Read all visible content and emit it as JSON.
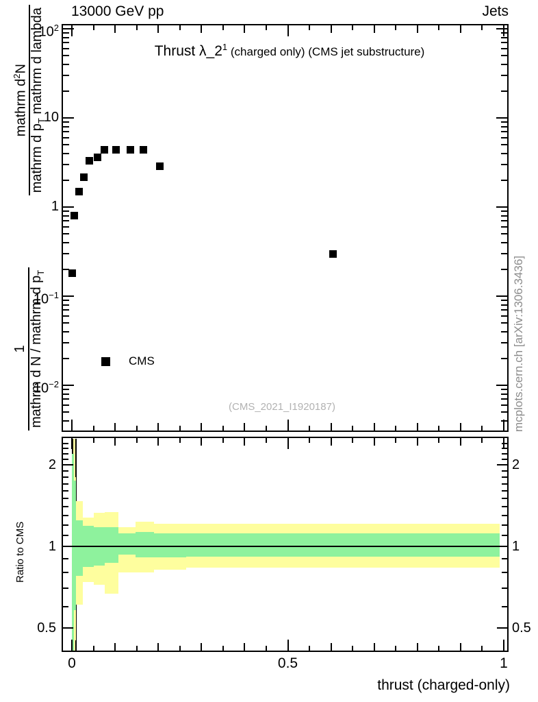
{
  "header": {
    "beam_energy": "13000 GeV pp",
    "analysis_group": "Jets"
  },
  "title": {
    "main": "Thrust λ_2",
    "sup": "1",
    "rest": " (charged only) (CMS jet substructure)"
  },
  "legend": {
    "label": "CMS"
  },
  "watermark": "(CMS_2021_I1920187)",
  "side_note": "mcplots.cern.ch [arXiv:1306.3436]",
  "xlabel": "thrust (charged-only)",
  "ratio_ylabel": "Ratio to CMS",
  "colors": {
    "band_yellow": "#FEFE9E",
    "band_green": "#8EF29D",
    "marker": "#000000",
    "gray_text": "#8c8c8c",
    "watermark_gray": "#b2b2b2"
  },
  "ylabel_frac": {
    "f1": {
      "num": [
        {
          "t": "1"
        }
      ],
      "den": [
        {
          "t": "mathrm d N / mathrm d p"
        },
        {
          "t": "T",
          "s": "sub"
        }
      ]
    },
    "f2": {
      "num": [
        {
          "t": "mathrm d"
        },
        {
          "t": "2",
          "s": "sup"
        },
        {
          "t": "N"
        }
      ],
      "den": [
        {
          "t": "mathrm d p"
        },
        {
          "t": "T",
          "s": "sub"
        },
        {
          "t": " mathrm d lambda"
        }
      ]
    }
  },
  "chart_data": {
    "type": "scatter",
    "title": "Thrust λ_2^1 (charged only) (CMS jet substructure)",
    "xlabel": "thrust (charged-only)",
    "ylabel": "1/(mathrm dN/mathrm dp_T) · mathrm d²N/(mathrm dp_T mathrm d lambda)",
    "x_range": [
      -0.024,
      1.011
    ],
    "y_range_log": [
      0.003,
      113
    ],
    "grid": false,
    "x_ticks": {
      "major": [
        0,
        0.5,
        1
      ],
      "labels": [
        "0",
        "0.5",
        "1"
      ],
      "medium_step": 0.1,
      "minor_step": 0.05
    },
    "y_ticks_labeled": [
      {
        "v": 100,
        "base": "10",
        "exp": "2"
      },
      {
        "v": 10,
        "base": "10",
        "exp": ""
      },
      {
        "v": 1,
        "base": "1",
        "exp": ""
      },
      {
        "v": 0.1,
        "base": "10",
        "exp": "−1"
      },
      {
        "v": 0.01,
        "base": "10",
        "exp": "−2"
      }
    ],
    "series": [
      {
        "name": "CMS",
        "marker": "filled-square",
        "color": "#000000",
        "points": [
          [
            0.001,
            0.18
          ],
          [
            0.006,
            0.8
          ],
          [
            0.016,
            1.5
          ],
          [
            0.027,
            2.15
          ],
          [
            0.041,
            3.3
          ],
          [
            0.059,
            3.6
          ],
          [
            0.076,
            4.35
          ],
          [
            0.103,
            4.35
          ],
          [
            0.135,
            4.4
          ],
          [
            0.166,
            4.4
          ],
          [
            0.203,
            2.85
          ],
          [
            0.605,
            0.295
          ]
        ]
      }
    ],
    "ratio_panel": {
      "ylabel": "Ratio to CMS",
      "y_range_log": [
        0.4,
        2.55
      ],
      "reference_line": 1.0,
      "y_ticks": {
        "major": [
          2,
          1,
          0.5
        ],
        "labels": [
          "2",
          "1",
          "0.5"
        ],
        "minor": [
          0.6,
          0.7,
          0.8,
          0.9,
          1.1,
          1.2,
          1.3,
          1.4,
          1.5,
          1.6,
          1.7,
          1.8,
          1.9,
          2.1,
          2.2,
          2.3,
          2.4,
          2.5
        ]
      },
      "bands": [
        {
          "x0": 0.0,
          "x1": 0.005,
          "yellow": [
            2.5,
            0.39
          ],
          "green": [
            2.2,
            0.41
          ],
          "edge": true
        },
        {
          "x0": 0.005,
          "x1": 0.01,
          "yellow": [
            1.8,
            0.45
          ],
          "green": [
            1.75,
            0.58
          ]
        },
        {
          "x0": 0.01,
          "x1": 0.026,
          "yellow": [
            1.47,
            0.61
          ],
          "green": [
            1.25,
            0.78
          ]
        },
        {
          "x0": 0.026,
          "x1": 0.05,
          "yellow": [
            1.28,
            0.74
          ],
          "green": [
            1.19,
            0.84
          ]
        },
        {
          "x0": 0.05,
          "x1": 0.076,
          "yellow": [
            1.33,
            0.72
          ],
          "green": [
            1.18,
            0.85
          ]
        },
        {
          "x0": 0.076,
          "x1": 0.108,
          "yellow": [
            1.34,
            0.67
          ],
          "green": [
            1.18,
            0.87
          ]
        },
        {
          "x0": 0.108,
          "x1": 0.148,
          "yellow": [
            1.18,
            0.8
          ],
          "green": [
            1.12,
            0.93
          ]
        },
        {
          "x0": 0.148,
          "x1": 0.19,
          "yellow": [
            1.23,
            0.8
          ],
          "green": [
            1.13,
            0.91
          ]
        },
        {
          "x0": 0.19,
          "x1": 0.264,
          "yellow": [
            1.21,
            0.82
          ],
          "green": [
            1.12,
            0.91
          ]
        },
        {
          "x0": 0.264,
          "x1": 0.99,
          "yellow": [
            1.21,
            0.835
          ],
          "green": [
            1.12,
            0.915
          ]
        }
      ]
    }
  }
}
